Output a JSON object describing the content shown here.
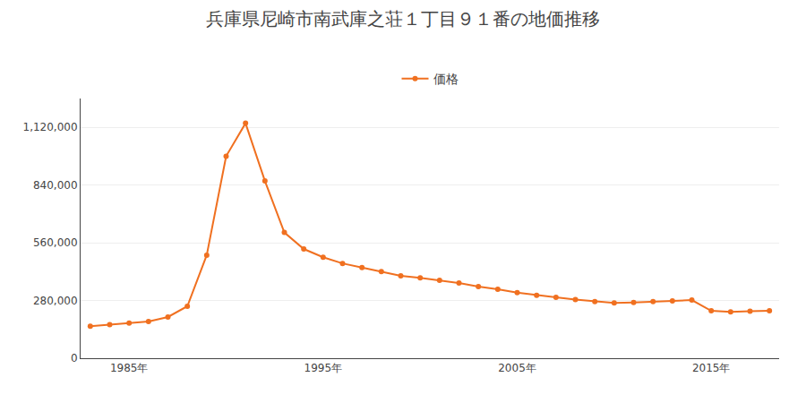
{
  "chart_data": {
    "type": "line",
    "title": "兵庫県尼崎市南武庫之荘１丁目９１番の地価推移",
    "x": [
      1983,
      1984,
      1985,
      1986,
      1987,
      1988,
      1989,
      1990,
      1991,
      1992,
      1993,
      1994,
      1995,
      1996,
      1997,
      1998,
      1999,
      2000,
      2001,
      2002,
      2003,
      2004,
      2005,
      2006,
      2007,
      2008,
      2009,
      2010,
      2011,
      2012,
      2013,
      2014,
      2015,
      2016,
      2017,
      2018
    ],
    "series": [
      {
        "name": "価格",
        "color": "#f07020",
        "marker": "circle",
        "line_style": "solid",
        "values": [
          155000,
          163000,
          170000,
          178000,
          200000,
          252000,
          500000,
          980000,
          1140000,
          860000,
          610000,
          530000,
          490000,
          460000,
          440000,
          420000,
          400000,
          390000,
          378000,
          365000,
          348000,
          335000,
          318000,
          305000,
          295000,
          285000,
          275000,
          268000,
          270000,
          275000,
          278000,
          282000,
          230000,
          225000,
          228000,
          230000
        ]
      }
    ],
    "xlim": [
      1982.5,
      2018.5
    ],
    "xticks": [
      {
        "value": 1985,
        "label": "1985年"
      },
      {
        "value": 1995,
        "label": "1995年"
      },
      {
        "value": 2005,
        "label": "2005年"
      },
      {
        "value": 2015,
        "label": "2015年"
      }
    ],
    "ylim": [
      0,
      1260000
    ],
    "yticks": [
      0,
      {
        "value": 280000,
        "label": "280,000"
      },
      {
        "value": 560000,
        "label": "560,000"
      },
      {
        "value": 840000,
        "label": "840,000"
      },
      {
        "value": 1120000,
        "label": "1,120,000"
      }
    ],
    "grid": "y",
    "legend": "top"
  }
}
